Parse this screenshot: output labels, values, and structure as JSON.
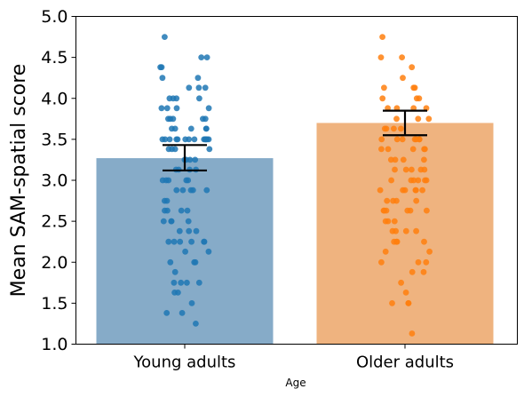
{
  "chart_data": {
    "type": "bar",
    "xlabel": "Age",
    "ylabel": "Mean SAM-spatial score",
    "ylim": [
      1.0,
      5.0
    ],
    "yticks": [
      "1.0",
      "1.5",
      "2.0",
      "2.5",
      "3.0",
      "3.5",
      "4.0",
      "4.5",
      "5.0"
    ],
    "categories": [
      "Young adults",
      "Older adults"
    ],
    "values": [
      3.27,
      3.7
    ],
    "error_low": [
      3.12,
      3.55
    ],
    "error_high": [
      3.43,
      3.85
    ],
    "colors": {
      "young_bar": "#86abc8",
      "young_point": "#1f77b4",
      "older_bar": "#efb37f",
      "older_point": "#ff7f0e"
    },
    "points": [
      [
        4.75,
        4.5,
        4.5,
        4.38,
        4.38,
        4.25,
        4.25,
        4.13,
        4.13,
        4.13,
        4.0,
        4.0,
        4.0,
        4.0,
        3.88,
        3.88,
        3.88,
        3.88,
        3.75,
        3.75,
        3.75,
        3.75,
        3.75,
        3.63,
        3.63,
        3.63,
        3.63,
        3.63,
        3.5,
        3.5,
        3.5,
        3.5,
        3.5,
        3.5,
        3.5,
        3.5,
        3.5,
        3.5,
        3.5,
        3.5,
        3.5,
        3.5,
        3.38,
        3.38,
        3.38,
        3.38,
        3.25,
        3.25,
        3.25,
        3.25,
        3.13,
        3.13,
        3.13,
        3.13,
        3.0,
        3.0,
        3.0,
        3.0,
        3.0,
        2.88,
        2.88,
        2.88,
        2.88,
        2.88,
        2.75,
        2.75,
        2.63,
        2.63,
        2.63,
        2.63,
        2.5,
        2.5,
        2.5,
        2.5,
        2.38,
        2.38,
        2.38,
        2.25,
        2.25,
        2.25,
        2.25,
        2.25,
        2.25,
        2.13,
        2.13,
        2.0,
        2.0,
        2.0,
        1.88,
        1.75,
        1.75,
        1.75,
        1.75,
        1.63,
        1.63,
        1.5,
        1.38,
        1.38,
        1.25
      ],
      [
        4.75,
        4.5,
        4.5,
        4.38,
        4.25,
        4.13,
        4.13,
        4.13,
        4.0,
        4.0,
        4.0,
        3.88,
        3.88,
        3.88,
        3.88,
        3.75,
        3.75,
        3.75,
        3.63,
        3.63,
        3.63,
        3.63,
        3.5,
        3.5,
        3.5,
        3.5,
        3.5,
        3.5,
        3.5,
        3.38,
        3.38,
        3.38,
        3.38,
        3.38,
        3.25,
        3.25,
        3.25,
        3.25,
        3.13,
        3.13,
        3.13,
        3.13,
        3.13,
        3.0,
        3.0,
        3.0,
        3.0,
        3.0,
        3.0,
        2.88,
        2.88,
        2.88,
        2.88,
        2.88,
        2.88,
        2.75,
        2.75,
        2.75,
        2.75,
        2.63,
        2.63,
        2.63,
        2.63,
        2.63,
        2.63,
        2.5,
        2.5,
        2.5,
        2.38,
        2.38,
        2.38,
        2.38,
        2.25,
        2.25,
        2.25,
        2.25,
        2.13,
        2.13,
        2.0,
        2.0,
        2.0,
        1.88,
        1.88,
        1.75,
        1.63,
        1.5,
        1.5,
        1.5,
        1.13
      ]
    ]
  }
}
